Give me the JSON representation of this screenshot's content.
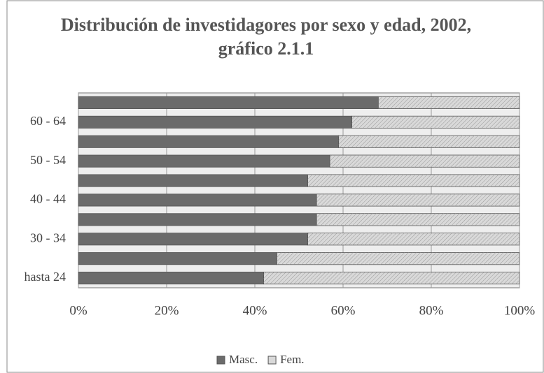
{
  "chart_data": {
    "type": "stacked_barh",
    "title": [
      "Distribución de investidagores por sexo y edad, 2002,",
      "gráfico 2.1.1"
    ],
    "categories": [
      "hasta 24",
      null,
      "30 - 34",
      null,
      "40 - 44",
      null,
      "50 - 54",
      null,
      "60 - 64",
      null
    ],
    "series": [
      {
        "name": "Masc.",
        "color": "#6b6b6b",
        "values": [
          42,
          45,
          52,
          54,
          54,
          52,
          57,
          59,
          62,
          68
        ]
      },
      {
        "name": "Fem.",
        "color": "#d9d9d9",
        "values": [
          58,
          55,
          48,
          46,
          46,
          48,
          43,
          41,
          38,
          32
        ]
      }
    ],
    "xlim": [
      0,
      100
    ],
    "xticks": [
      {
        "value": 0,
        "label": "0%"
      },
      {
        "value": 20,
        "label": "20%"
      },
      {
        "value": 40,
        "label": "40%"
      },
      {
        "value": 60,
        "label": "60%"
      },
      {
        "value": 80,
        "label": "80%"
      },
      {
        "value": 100,
        "label": "100%"
      }
    ],
    "grid": true,
    "legend": "bottom"
  }
}
